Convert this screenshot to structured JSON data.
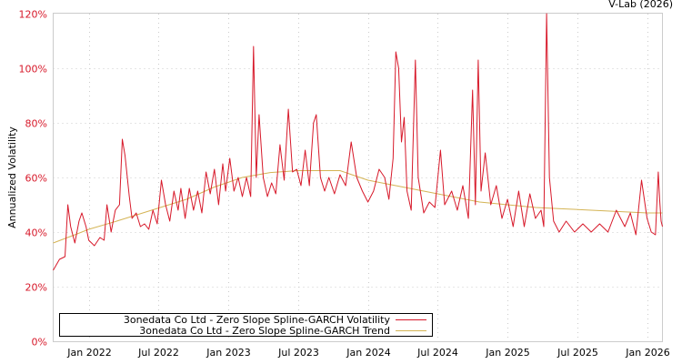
{
  "credit": "V-Lab (2026)",
  "chart_data": {
    "type": "line",
    "title": "",
    "xlabel": "",
    "ylabel": "Annualized Volatility",
    "xlim": [
      2021.745,
      2026.11
    ],
    "ylim": [
      0,
      120
    ],
    "grid": true,
    "legend_placement": "bottom-left",
    "yticks": [
      0,
      20,
      40,
      60,
      80,
      100,
      120
    ],
    "ytick_labels": [
      "0%",
      "20%",
      "40%",
      "60%",
      "80%",
      "100%",
      "120%"
    ],
    "xticks": [
      2022.0,
      2022.5,
      2023.0,
      2023.5,
      2024.0,
      2024.5,
      2025.0,
      2025.5,
      2026.0
    ],
    "xtick_labels": [
      "Jan 2022",
      "Jul 2022",
      "Jan 2023",
      "Jul 2023",
      "Jan 2024",
      "Jul 2024",
      "Jan 2025",
      "Jul 2025",
      "Jan 2026"
    ],
    "series": [
      {
        "name": "3onedata Co Ltd - Zero Slope Spline-GARCH Volatility",
        "color": "#d7192a",
        "x": [
          2021.745,
          2021.79,
          2021.83,
          2021.85,
          2021.87,
          2021.9,
          2021.93,
          2021.95,
          2021.98,
          2022.0,
          2022.04,
          2022.08,
          2022.11,
          2022.13,
          2022.16,
          2022.19,
          2022.22,
          2022.24,
          2022.26,
          2022.29,
          2022.31,
          2022.34,
          2022.37,
          2022.4,
          2022.43,
          2022.46,
          2022.49,
          2022.52,
          2022.55,
          2022.58,
          2022.61,
          2022.64,
          2022.66,
          2022.69,
          2022.72,
          2022.75,
          2022.78,
          2022.81,
          2022.84,
          2022.87,
          2022.9,
          2022.93,
          2022.96,
          2022.98,
          2023.01,
          2023.04,
          2023.07,
          2023.1,
          2023.13,
          2023.16,
          2023.18,
          2023.2,
          2023.22,
          2023.25,
          2023.28,
          2023.31,
          2023.34,
          2023.37,
          2023.4,
          2023.43,
          2023.46,
          2023.49,
          2023.52,
          2023.55,
          2023.58,
          2023.61,
          2023.63,
          2023.66,
          2023.69,
          2023.72,
          2023.76,
          2023.8,
          2023.84,
          2023.88,
          2023.92,
          2023.96,
          2024.0,
          2024.04,
          2024.08,
          2024.12,
          2024.15,
          2024.18,
          2024.2,
          2024.22,
          2024.24,
          2024.26,
          2024.28,
          2024.31,
          2024.34,
          2024.36,
          2024.4,
          2024.44,
          2024.48,
          2024.52,
          2024.55,
          2024.6,
          2024.64,
          2024.68,
          2024.72,
          2024.75,
          2024.77,
          2024.79,
          2024.81,
          2024.84,
          2024.88,
          2024.92,
          2024.96,
          2025.0,
          2025.04,
          2025.08,
          2025.12,
          2025.16,
          2025.2,
          2025.24,
          2025.26,
          2025.28,
          2025.3,
          2025.33,
          2025.37,
          2025.42,
          2025.48,
          2025.54,
          2025.6,
          2025.66,
          2025.72,
          2025.78,
          2025.84,
          2025.88,
          2025.92,
          2025.96,
          2026.0,
          2026.03,
          2026.06,
          2026.08,
          2026.09,
          2026.1,
          2026.11
        ],
        "y": [
          26,
          30,
          31,
          50,
          42,
          36,
          44,
          47,
          42,
          37,
          35,
          38,
          37,
          50,
          40,
          48,
          50,
          74,
          68,
          53,
          45,
          47,
          42,
          43,
          41,
          48,
          43,
          59,
          50,
          44,
          55,
          48,
          56,
          45,
          56,
          48,
          55,
          47,
          62,
          54,
          63,
          50,
          65,
          55,
          67,
          55,
          60,
          53,
          60,
          53,
          108,
          60,
          83,
          60,
          53,
          58,
          54,
          72,
          59,
          85,
          62,
          63,
          57,
          70,
          57,
          80,
          83,
          60,
          55,
          60,
          54,
          61,
          57,
          73,
          60,
          55,
          51,
          55,
          63,
          60,
          52,
          67,
          106,
          100,
          73,
          82,
          55,
          48,
          103,
          60,
          47,
          51,
          49,
          70,
          50,
          55,
          48,
          57,
          45,
          92,
          50,
          103,
          55,
          69,
          50,
          57,
          45,
          52,
          42,
          55,
          42,
          54,
          45,
          48,
          42,
          120,
          60,
          44,
          40,
          44,
          40,
          43,
          40,
          43,
          40,
          48,
          42,
          47,
          39,
          59,
          45,
          40,
          39,
          62,
          52,
          44,
          42
        ]
      },
      {
        "name": "3onedata Co Ltd - Zero Slope Spline-GARCH Trend",
        "color": "#d4b455",
        "x": [
          2021.745,
          2021.9,
          2022.0,
          2022.2,
          2022.45,
          2022.7,
          2022.9,
          2023.1,
          2023.3,
          2023.5,
          2023.8,
          2024.0,
          2024.2,
          2024.4,
          2024.6,
          2024.8,
          2025.0,
          2025.2,
          2025.4,
          2025.6,
          2025.8,
          2026.0,
          2026.11
        ],
        "y": [
          36,
          39,
          41,
          44,
          48,
          52,
          56.5,
          60,
          61.8,
          62.5,
          62.5,
          59,
          57,
          55,
          53,
          51,
          50,
          49,
          48.5,
          48,
          47.5,
          47,
          47
        ]
      }
    ]
  }
}
